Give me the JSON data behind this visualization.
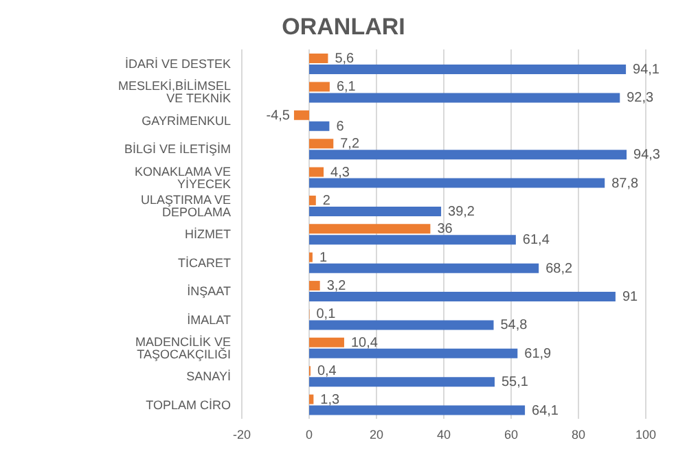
{
  "chart_data": {
    "type": "bar",
    "orientation": "horizontal",
    "title": "ORANLARI",
    "categories": [
      "İDARİ VE DESTEK",
      "MESLEKİ,BİLİMSEL VE TEKNİK",
      "GAYRİMENKUL",
      "BİLGİ VE İLETİŞİM",
      "KONAKLAMA VE YİYECEK",
      "ULAŞTIRMA VE DEPOLAMA",
      "HİZMET",
      "TİCARET",
      "İNŞAAT",
      "İMALAT",
      "MADENCİLİK VE TAŞOCAKÇILIĞI",
      "SANAYİ",
      "TOPLAM CİRO"
    ],
    "series": [
      {
        "color": "#ed7d31",
        "values": [
          5.6,
          6.1,
          -4.5,
          7.2,
          4.3,
          2,
          36,
          1,
          3.2,
          0.1,
          10.4,
          0.4,
          1.3
        ],
        "value_labels": [
          "5,6",
          "6,1",
          "-4,5",
          "7,2",
          "4,3",
          "2",
          "36",
          "1",
          "3,2",
          "0,1",
          "10,4",
          "0,4",
          "1,3"
        ]
      },
      {
        "color": "#4472c4",
        "values": [
          94.1,
          92.3,
          6,
          94.3,
          87.8,
          39.2,
          61.4,
          68.2,
          91,
          54.8,
          61.9,
          55.1,
          64.1
        ],
        "value_labels": [
          "94,1",
          "92,3",
          "6",
          "94,3",
          "87,8",
          "39,2",
          "61,4",
          "68,2",
          "91",
          "54,8",
          "61,9",
          "55,1",
          "64,1"
        ]
      }
    ],
    "xlim": [
      -20,
      100
    ],
    "xticks": [
      -20,
      0,
      20,
      40,
      60,
      80,
      100
    ],
    "grid": "x"
  }
}
